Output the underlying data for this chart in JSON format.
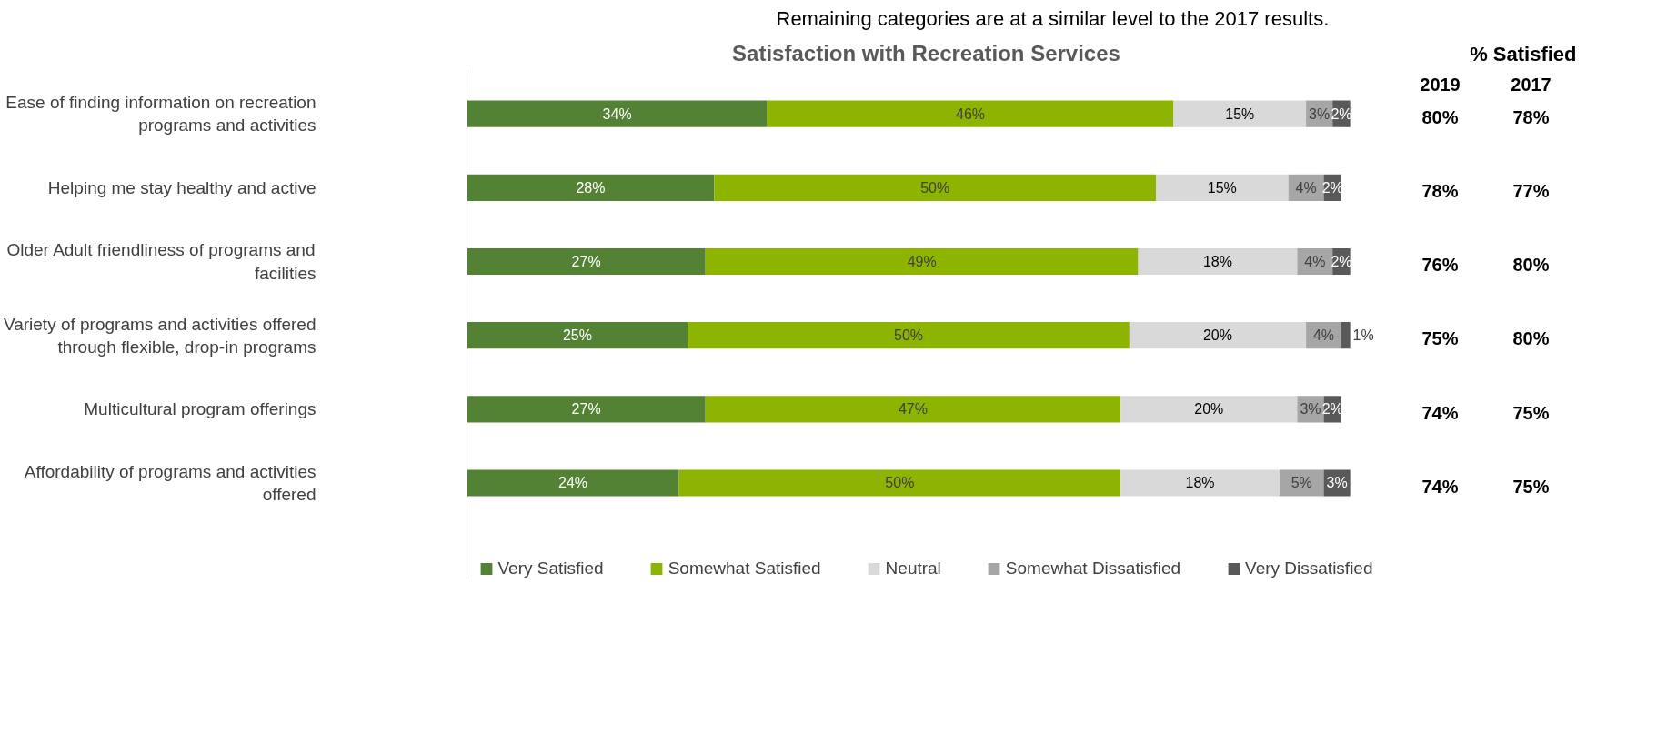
{
  "chart_data": [
    {
      "type": "bar",
      "orientation": "horizontal",
      "stacked": true,
      "title": "Satisfaction with Recreation Services",
      "legend": "bottom",
      "annotations": [
        "Remaining categories are at a similar level to the 2017 results."
      ],
      "categories": [
        "Ease of finding information on recreation programs and activities",
        "Helping me stay healthy and active",
        "Older Adult friendliness of programs and facilities",
        "Variety of programs and activities offered through flexible, drop-in programs",
        "Multicultural program offerings",
        "Affordability of programs and activities offered"
      ],
      "series": [
        {
          "name": "Very Satisfied",
          "color": "#548235",
          "values": [
            34,
            28,
            27,
            25,
            27,
            24
          ],
          "value_labels": [
            "34%",
            "28%",
            "27%",
            "25%",
            "27%",
            "24%"
          ]
        },
        {
          "name": "Somewhat Satisfied",
          "color": "#8cb400",
          "values": [
            46,
            50,
            49,
            50,
            47,
            50
          ],
          "value_labels": [
            "46%",
            "50%",
            "49%",
            "50%",
            "47%",
            "50%"
          ]
        },
        {
          "name": "Neutral",
          "color": "#d9d9d9",
          "values": [
            15,
            15,
            18,
            20,
            20,
            18
          ],
          "value_labels": [
            "15%",
            "15%",
            "18%",
            "20%",
            "20%",
            "18%"
          ]
        },
        {
          "name": "Somewhat Dissatisfied",
          "color": "#a6a6a6",
          "values": [
            3,
            4,
            4,
            4,
            3,
            5
          ],
          "value_labels": [
            "3%",
            "4%",
            "4%",
            "4%",
            "3%",
            "5%"
          ]
        },
        {
          "name": "Very Dissatisfied",
          "color": "#595959",
          "values": [
            2,
            2,
            2,
            1,
            2,
            3
          ],
          "value_labels": [
            "2%",
            "2%",
            "2%",
            "1%",
            "2%",
            "3%"
          ]
        }
      ]
    },
    {
      "type": "other",
      "title": "% Satisfied",
      "annotations": [
        "2019",
        "2017",
        "80%",
        "78%",
        "78%",
        "77%",
        "76%",
        "80%",
        "75%",
        "80%",
        "74%",
        "75%",
        "74%",
        "75%"
      ]
    }
  ]
}
